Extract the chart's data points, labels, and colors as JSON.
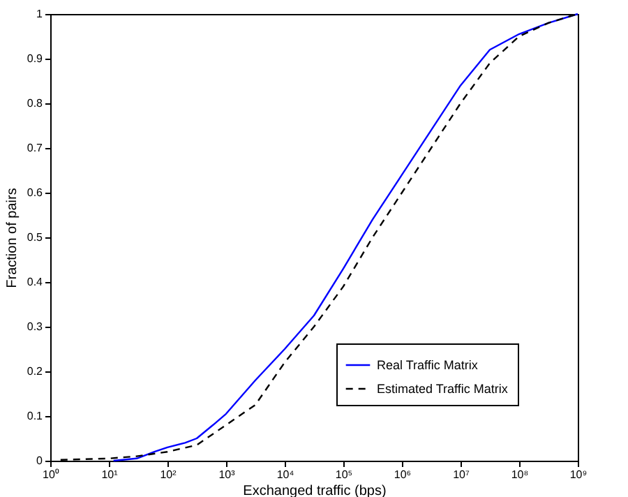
{
  "chart_data": {
    "type": "line",
    "xlabel": "Exchanged traffic (bps)",
    "ylabel": "Fraction of pairs",
    "log": "x",
    "xlim": [
      1,
      1000000000
    ],
    "ylim": [
      0,
      1
    ],
    "xticks": [
      {
        "value": 1,
        "label": "10⁰"
      },
      {
        "value": 10,
        "label": "10¹"
      },
      {
        "value": 100,
        "label": "10²"
      },
      {
        "value": 1000,
        "label": "10³"
      },
      {
        "value": 10000,
        "label": "10⁴"
      },
      {
        "value": 100000,
        "label": "10⁵"
      },
      {
        "value": 1000000,
        "label": "10⁶"
      },
      {
        "value": 10000000,
        "label": "10⁷"
      },
      {
        "value": 100000000,
        "label": "10⁸"
      },
      {
        "value": 1000000000,
        "label": "10⁹"
      }
    ],
    "yticks": [
      0,
      0.1,
      0.2,
      0.3,
      0.4,
      0.5,
      0.6,
      0.7,
      0.8,
      0.9,
      1
    ],
    "grid": false,
    "legend": "bottom right",
    "marker": "none",
    "series": [
      {
        "name": "Real Traffic Matrix",
        "color": "#0000ff",
        "line_style": "solid",
        "x": [
          12,
          30,
          60,
          100,
          200,
          316,
          600,
          1000,
          3160,
          10000,
          31600,
          100000,
          316000,
          1000000,
          3160000,
          10000000,
          31600000,
          100000000,
          316000000,
          1000000000
        ],
        "values": [
          0,
          0.005,
          0.02,
          0.03,
          0.04,
          0.05,
          0.08,
          0.105,
          0.18,
          0.25,
          0.325,
          0.43,
          0.54,
          0.64,
          0.74,
          0.84,
          0.92,
          0.955,
          0.98,
          1
        ]
      },
      {
        "name": "Estimated Traffic Matrix",
        "color": "#000000",
        "line_style": "dashed",
        "x": [
          1.5,
          10,
          30,
          100,
          316,
          1000,
          3160,
          10000,
          31600,
          100000,
          316000,
          1000000,
          3160000,
          10000000,
          31600000,
          100000000,
          316000000,
          1000000000
        ],
        "values": [
          0.002,
          0.005,
          0.01,
          0.02,
          0.035,
          0.08,
          0.125,
          0.22,
          0.3,
          0.39,
          0.5,
          0.6,
          0.7,
          0.8,
          0.89,
          0.95,
          0.98,
          1
        ]
      }
    ]
  }
}
